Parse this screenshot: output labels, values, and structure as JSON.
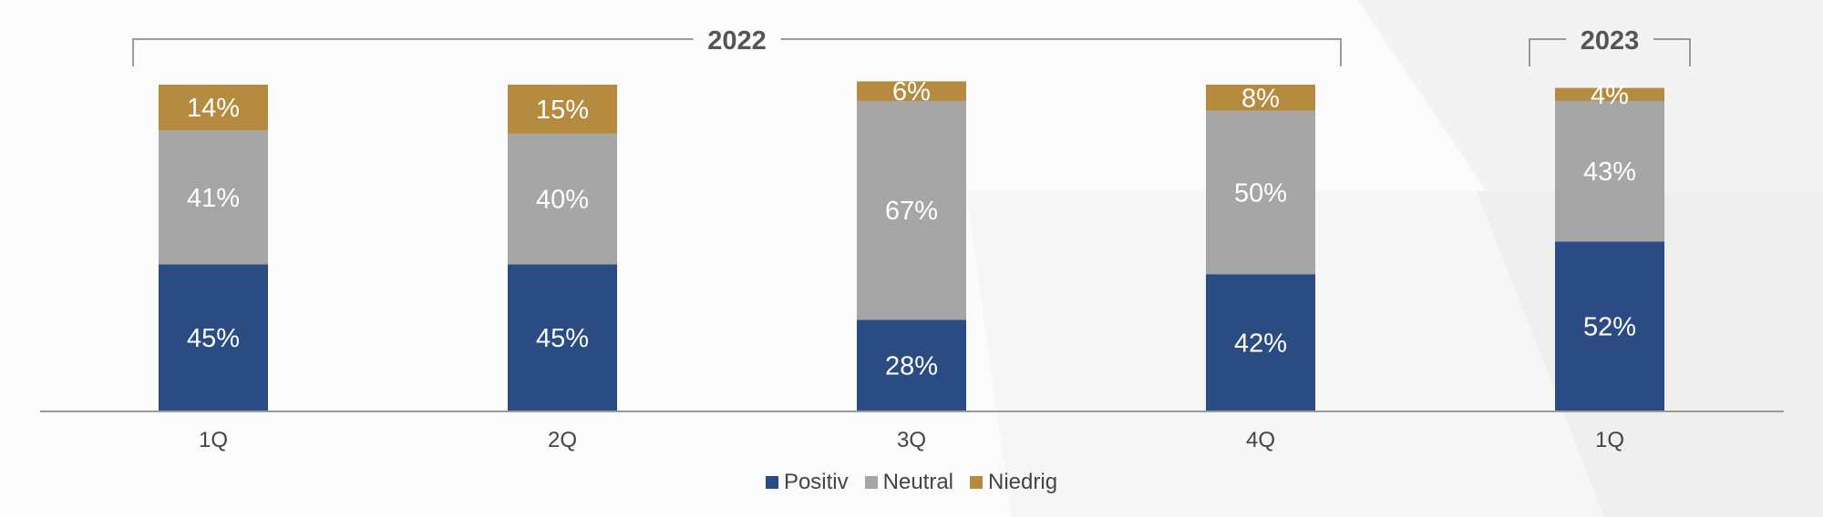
{
  "chart_data": {
    "type": "bar",
    "stacked": true,
    "percent_stacked": true,
    "categories": [
      "1Q",
      "2Q",
      "3Q",
      "4Q",
      "1Q"
    ],
    "groups": [
      {
        "label": "2022",
        "from": 0,
        "to": 3
      },
      {
        "label": "2023",
        "from": 4,
        "to": 4
      }
    ],
    "series": [
      {
        "name": "Positiv",
        "color": "#2b4c83",
        "values": [
          45,
          45,
          28,
          42,
          52
        ],
        "labels": [
          "45%",
          "45%",
          "28%",
          "42%",
          "52%"
        ]
      },
      {
        "name": "Neutral",
        "color": "#a6a6a6",
        "values": [
          41,
          40,
          67,
          50,
          43
        ],
        "labels": [
          "41%",
          "40%",
          "67%",
          "50%",
          "43%"
        ]
      },
      {
        "name": "Niedrig",
        "color": "#b48b3f",
        "values": [
          14,
          15,
          6,
          8,
          4
        ],
        "labels": [
          "14%",
          "15%",
          "6%",
          "8%",
          "4%"
        ]
      }
    ],
    "ylim": [
      0,
      100
    ],
    "legend_position": "bottom",
    "grid": false,
    "data_labels": true
  }
}
